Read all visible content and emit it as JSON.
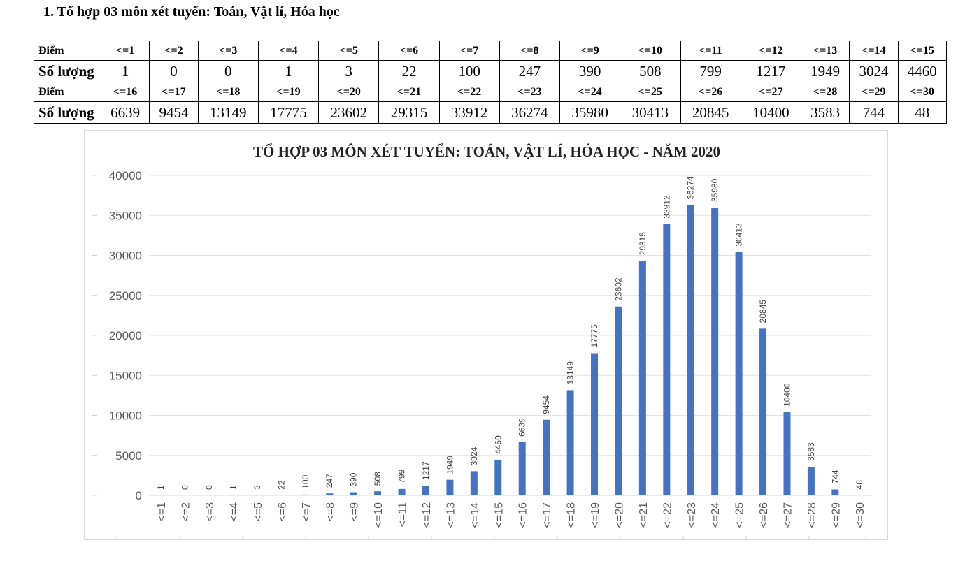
{
  "heading": "1. Tổ hợp 03 môn xét tuyển: Toán, Vật lí, Hóa học",
  "table": {
    "score_label": "Điểm",
    "count_label": "Số lượng",
    "blocks": [
      {
        "scores": [
          "<=1",
          "<=2",
          "<=3",
          "<=4",
          "<=5",
          "<=6",
          "<=7",
          "<=8",
          "<=9",
          "<=10",
          "<=11",
          "<=12",
          "<=13",
          "<=14",
          "<=15"
        ],
        "counts": [
          "1",
          "0",
          "0",
          "1",
          "3",
          "22",
          "100",
          "247",
          "390",
          "508",
          "799",
          "1217",
          "1949",
          "3024",
          "4460"
        ]
      },
      {
        "scores": [
          "<=16",
          "<=17",
          "<=18",
          "<=19",
          "<=20",
          "<=21",
          "<=22",
          "<=23",
          "<=24",
          "<=25",
          "<=26",
          "<=27",
          "<=28",
          "<=29",
          "<=30"
        ],
        "counts": [
          "6639",
          "9454",
          "13149",
          "17775",
          "23602",
          "29315",
          "33912",
          "36274",
          "35980",
          "30413",
          "20845",
          "10400",
          "3583",
          "744",
          "48"
        ]
      }
    ]
  },
  "chart_data": {
    "type": "bar",
    "title": "TỔ HỢP 03 MÔN XÉT TUYỂN: TOÁN, VẬT LÍ, HÓA HỌC - NĂM 2020",
    "xlabel": "",
    "ylabel": "",
    "categories": [
      "<=1",
      "<=2",
      "<=3",
      "<=4",
      "<=5",
      "<=6",
      "<=7",
      "<=8",
      "<=9",
      "<=10",
      "<=11",
      "<=12",
      "<=13",
      "<=14",
      "<=15",
      "<=16",
      "<=17",
      "<=18",
      "<=19",
      "<=20",
      "<=21",
      "<=22",
      "<=23",
      "<=24",
      "<=25",
      "<=26",
      "<=27",
      "<=28",
      "<=29",
      "<=30"
    ],
    "values": [
      1,
      0,
      0,
      1,
      3,
      22,
      100,
      247,
      390,
      508,
      799,
      1217,
      1949,
      3024,
      4460,
      6639,
      9454,
      13149,
      17775,
      23602,
      29315,
      33912,
      36274,
      35980,
      30413,
      20845,
      10400,
      3583,
      744,
      48
    ],
    "ylim": [
      0,
      40000
    ],
    "yticks": [
      0,
      5000,
      10000,
      15000,
      20000,
      25000,
      30000,
      35000,
      40000
    ],
    "grid": true,
    "legend": "none",
    "bar_color": "#4472c4",
    "data_labels": true
  }
}
